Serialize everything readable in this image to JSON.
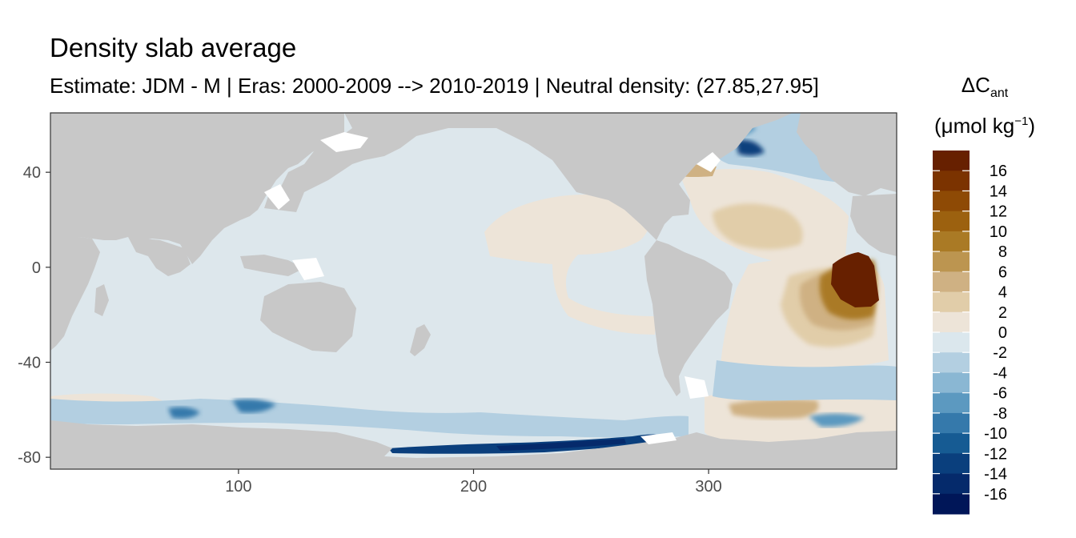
{
  "header": {
    "title": "Density slab average",
    "subtitle": "Estimate: JDM - M | Eras: 2000-2009 --> 2010-2019 | Neutral density: (27.85,27.95]"
  },
  "legend": {
    "title_symbol": "ΔC",
    "title_subscript": "ant",
    "unit_prefix": "(μmol kg",
    "unit_superscript": "−1",
    "unit_suffix": ")",
    "ticks": [
      "16",
      "14",
      "12",
      "10",
      "8",
      "6",
      "4",
      "2",
      "0",
      "-2",
      "-4",
      "-6",
      "-8",
      "-10",
      "-12",
      "-14",
      "-16"
    ],
    "colors": [
      "#672000",
      "#7b3300",
      "#8e4a05",
      "#9c610f",
      "#aa7a25",
      "#bc9550",
      "#cfb183",
      "#e1cda9",
      "#ede4d8",
      "#dbe7ed",
      "#b3cfe1",
      "#8ab7d3",
      "#5c99c0",
      "#3579ab",
      "#165b93",
      "#0a3f7d",
      "#052a6b",
      "#001658"
    ]
  },
  "map": {
    "xaxis": {
      "ticks": [
        100,
        200,
        300
      ],
      "range": [
        20,
        380
      ]
    },
    "yaxis": {
      "ticks": [
        40,
        0,
        -40,
        -80
      ],
      "range": [
        -85,
        65
      ]
    },
    "land_color": "#c8c8c8",
    "ocean_background": "#dde7ec",
    "notable_values": {
      "east_atlantic_maximum": 17,
      "tropical_atlantic_positive": 6,
      "ross_sea_minimum": -14,
      "southern_ocean_negative": -6
    }
  }
}
